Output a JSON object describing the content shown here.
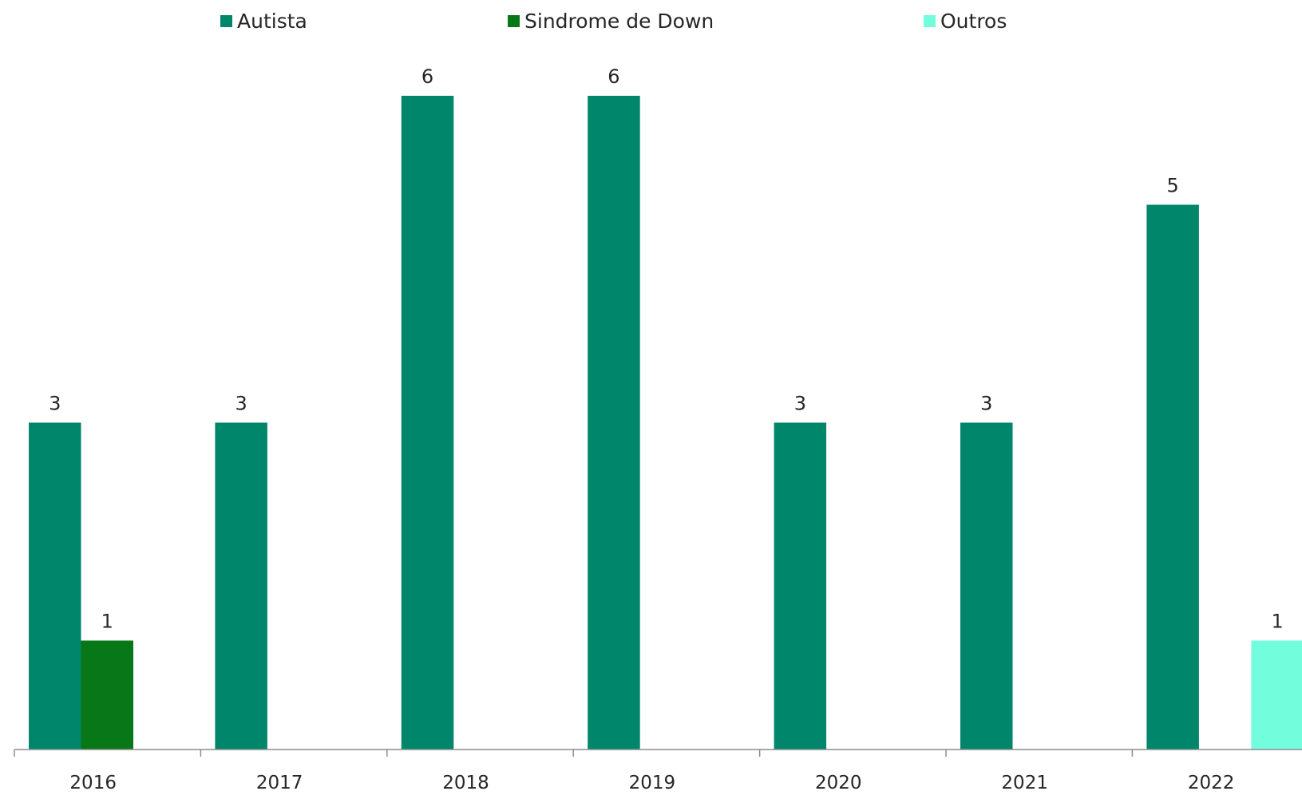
{
  "chart_data": {
    "type": "bar",
    "categories": [
      "2016",
      "2017",
      "2018",
      "2019",
      "2020",
      "2021",
      "2022"
    ],
    "series": [
      {
        "name": "Autista",
        "color": "#00866B",
        "values": [
          3,
          3,
          6,
          6,
          3,
          3,
          5
        ]
      },
      {
        "name": "Sindrome de Down",
        "color": "#077718",
        "values": [
          1,
          null,
          null,
          null,
          null,
          null,
          null
        ]
      },
      {
        "name": "Outros",
        "color": "#72FDDC",
        "values": [
          null,
          null,
          null,
          null,
          null,
          null,
          1
        ]
      }
    ],
    "title": "",
    "xlabel": "",
    "ylabel": "",
    "ylim": [
      0,
      6
    ],
    "grid": false,
    "legend_position": "top",
    "data_labels": true
  }
}
